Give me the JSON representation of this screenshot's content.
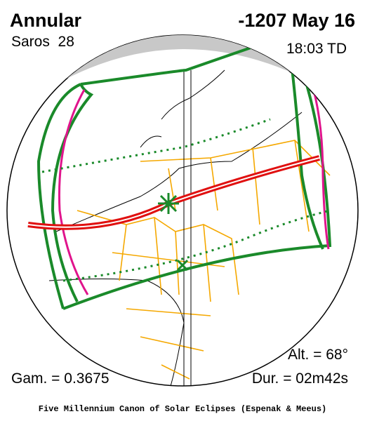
{
  "header": {
    "type": "Annular",
    "saros": "Saros  28",
    "date": "-1207 May 16",
    "time": "18:03 TD"
  },
  "footer": {
    "altitude": "Alt. = 68°",
    "gamma": "Gam. = 0.3675",
    "duration": "Dur. = 02m42s",
    "caption": "Five Millennium Canon of Solar Eclipses (Espenak & Meeus)"
  }
}
